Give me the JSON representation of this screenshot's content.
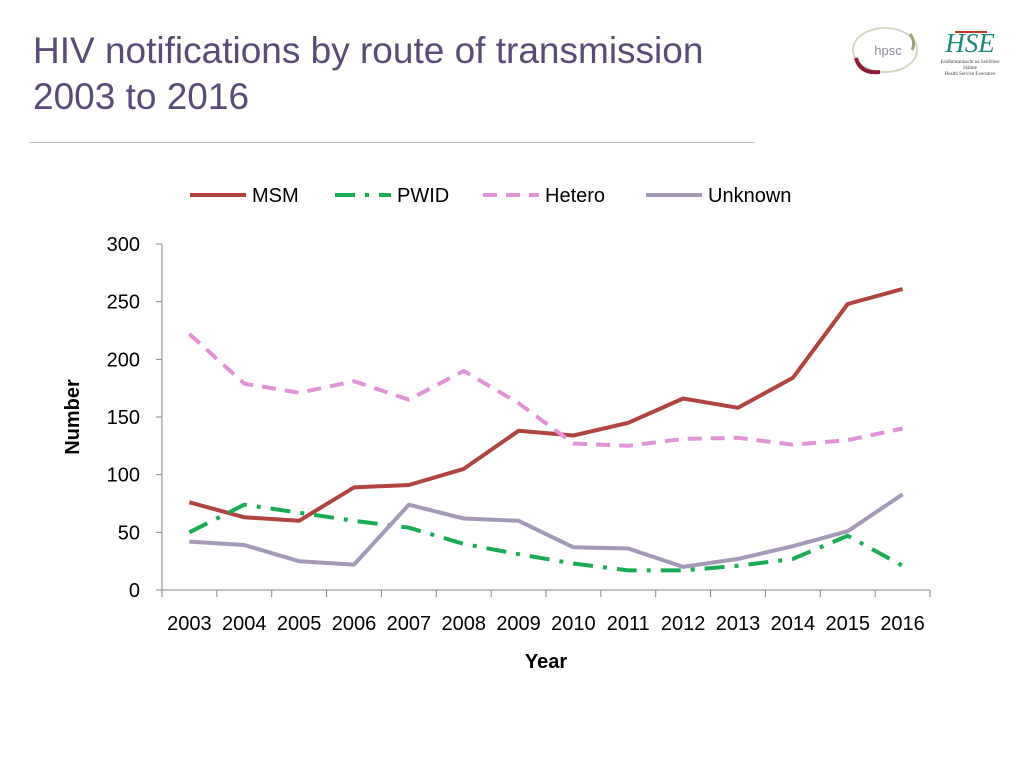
{
  "slide": {
    "title_line1": "HIV notifications by route of transmission",
    "title_line2": "2003 to 2016"
  },
  "logos": {
    "hpsc_text": "hpsc",
    "hse_text": "HSE",
    "hse_caption_line1": "Feidhmeannacht na Seirbhíse Sláinte",
    "hse_caption_line2": "Health Service Executive"
  },
  "chart_data": {
    "type": "line",
    "title": "",
    "xlabel": "Year",
    "ylabel": "Number",
    "ylim": [
      0,
      300
    ],
    "yticks": [
      0,
      50,
      100,
      150,
      200,
      250,
      300
    ],
    "categories": [
      "2003",
      "2004",
      "2005",
      "2006",
      "2007",
      "2008",
      "2009",
      "2010",
      "2011",
      "2012",
      "2013",
      "2014",
      "2015",
      "2016"
    ],
    "legend_position": "top",
    "series": [
      {
        "name": "MSM",
        "color": "#b0443e",
        "style": "solid",
        "values": [
          76,
          63,
          60,
          89,
          91,
          105,
          138,
          134,
          145,
          166,
          158,
          184,
          248,
          261
        ]
      },
      {
        "name": "PWID",
        "color": "#1aab55",
        "style": "dashdot",
        "values": [
          50,
          74,
          67,
          60,
          54,
          40,
          31,
          23,
          17,
          17,
          21,
          27,
          47,
          21
        ]
      },
      {
        "name": "Hetero",
        "color": "#e293d6",
        "style": "dashed",
        "values": [
          222,
          179,
          171,
          181,
          165,
          190,
          162,
          127,
          125,
          131,
          132,
          126,
          130,
          140
        ]
      },
      {
        "name": "Unknown",
        "color": "#a49ab8",
        "style": "solid",
        "values": [
          42,
          39,
          25,
          22,
          74,
          62,
          60,
          37,
          36,
          20,
          27,
          38,
          51,
          83
        ]
      }
    ]
  }
}
